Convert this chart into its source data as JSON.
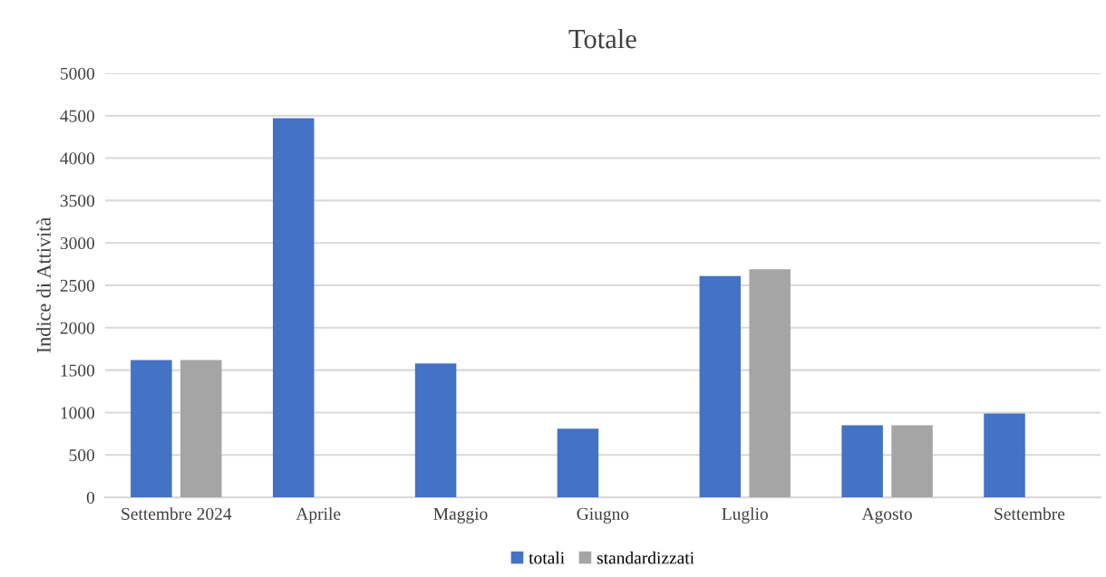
{
  "chart_data": {
    "type": "bar",
    "title": "Totale",
    "ylabel": "Indice di Attività",
    "categories": [
      "Settembre 2024",
      "Aprile",
      "Maggio",
      "Giugno",
      "Luglio",
      "Agosto",
      "Settembre"
    ],
    "series": [
      {
        "name": "totali",
        "color": "#4472c4",
        "values": [
          1620,
          4470,
          1580,
          810,
          2610,
          850,
          990
        ]
      },
      {
        "name": "standardizzati",
        "color": "#a5a5a5",
        "values": [
          1620,
          null,
          null,
          null,
          2690,
          850,
          null
        ]
      }
    ],
    "ylim": [
      0,
      5000
    ],
    "yticks": [
      0,
      500,
      1000,
      1500,
      2000,
      2500,
      3000,
      3500,
      4000,
      4500,
      5000
    ],
    "grid": "y",
    "legend": "bottom"
  }
}
